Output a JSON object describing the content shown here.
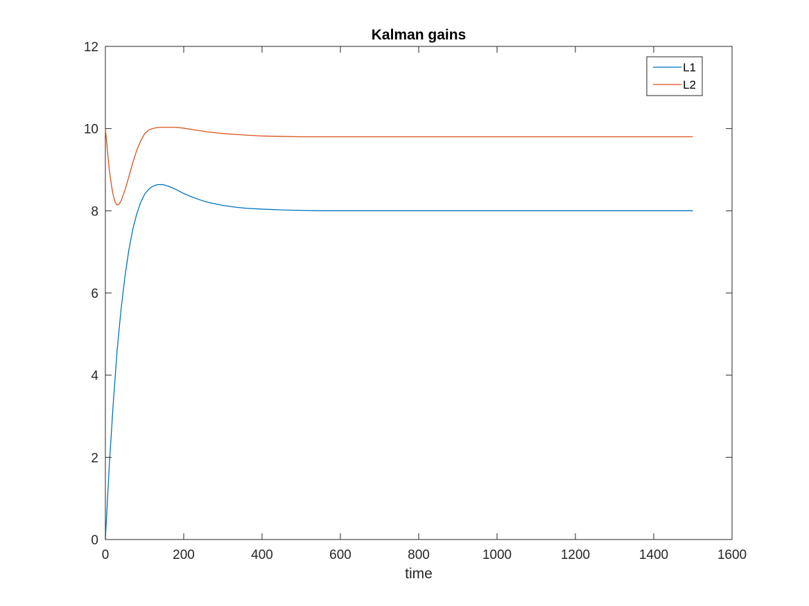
{
  "chart_data": {
    "type": "line",
    "title": "Kalman gains",
    "xlabel": "time",
    "ylabel": "",
    "xlim": [
      0,
      1600
    ],
    "ylim": [
      0,
      12
    ],
    "xticks": [
      0,
      200,
      400,
      600,
      800,
      1000,
      1200,
      1400,
      1600
    ],
    "yticks": [
      0,
      2,
      4,
      6,
      8,
      10,
      12
    ],
    "xtick_labels": [
      "0",
      "200",
      "400",
      "600",
      "800",
      "1000",
      "1200",
      "1400",
      "1600"
    ],
    "ytick_labels": [
      "0",
      "2",
      "4",
      "6",
      "8",
      "10",
      "12"
    ],
    "grid": false,
    "legend": {
      "placement": "top-right",
      "entries": [
        "L1",
        "L2"
      ]
    },
    "series": [
      {
        "name": "L1",
        "color": "#0072BD",
        "x": [
          0,
          5,
          10,
          20,
          30,
          40,
          50,
          60,
          70,
          80,
          90,
          100,
          110,
          120,
          130,
          140,
          150,
          160,
          170,
          180,
          190,
          200,
          220,
          240,
          260,
          280,
          300,
          330,
          360,
          400,
          450,
          500,
          550,
          600,
          700,
          800,
          900,
          1000,
          1100,
          1200,
          1300,
          1400,
          1500
        ],
        "y": [
          0,
          0.9,
          1.8,
          3.3,
          4.6,
          5.6,
          6.4,
          7.05,
          7.55,
          7.92,
          8.2,
          8.4,
          8.52,
          8.59,
          8.63,
          8.64,
          8.63,
          8.6,
          8.56,
          8.52,
          8.47,
          8.42,
          8.34,
          8.27,
          8.21,
          8.17,
          8.13,
          8.09,
          8.06,
          8.04,
          8.02,
          8.01,
          8.0,
          8.0,
          8.0,
          8.0,
          8.0,
          8.0,
          8.0,
          8.0,
          8.0,
          8.0,
          8.0
        ]
      },
      {
        "name": "L2",
        "color": "#D95319",
        "x": [
          0,
          3,
          6,
          10,
          15,
          20,
          25,
          30,
          35,
          40,
          50,
          60,
          70,
          80,
          90,
          100,
          110,
          120,
          130,
          140,
          150,
          160,
          170,
          180,
          190,
          200,
          220,
          240,
          260,
          280,
          300,
          330,
          360,
          400,
          450,
          500,
          600,
          700,
          800,
          900,
          1000,
          1100,
          1200,
          1300,
          1400,
          1500
        ],
        "y": [
          10.0,
          9.7,
          9.4,
          9.0,
          8.65,
          8.38,
          8.2,
          8.14,
          8.16,
          8.24,
          8.5,
          8.83,
          9.17,
          9.47,
          9.7,
          9.87,
          9.96,
          10.0,
          10.02,
          10.03,
          10.03,
          10.03,
          10.03,
          10.03,
          10.02,
          10.01,
          9.98,
          9.95,
          9.92,
          9.9,
          9.88,
          9.86,
          9.84,
          9.82,
          9.81,
          9.8,
          9.8,
          9.8,
          9.8,
          9.8,
          9.8,
          9.8,
          9.8,
          9.8,
          9.8,
          9.8
        ]
      }
    ]
  }
}
